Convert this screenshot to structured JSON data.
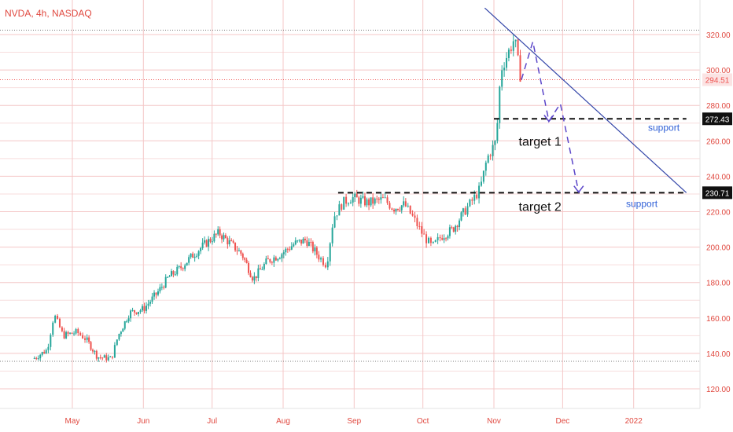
{
  "header": {
    "title": "NVDA, 4h, NASDAQ"
  },
  "colors": {
    "up": "#26a69a",
    "down": "#ef5350",
    "grid": "#f4c7c7",
    "axis_text": "#e0483f",
    "trendline": "#3345a8",
    "projection": "#5b46c9",
    "support_text": "#2f5fd6"
  },
  "chart_data": {
    "type": "candlestick",
    "y_axis": {
      "ticks": [
        "320.00",
        "300.00",
        "280.00",
        "260.00",
        "240.00",
        "220.00",
        "200.00",
        "180.00",
        "160.00",
        "140.00",
        "120.00"
      ],
      "range": [
        110,
        330
      ]
    },
    "x_axis": {
      "ticks": [
        "May",
        "Jun",
        "Jul",
        "Aug",
        "Sep",
        "Oct",
        "Nov",
        "Dec",
        "2022"
      ]
    },
    "price_labels": [
      {
        "value": 294.51,
        "label": "294.51",
        "style": "current"
      },
      {
        "value": 272.43,
        "label": "272.43",
        "style": "level"
      },
      {
        "value": 230.71,
        "label": "230.71",
        "style": "level"
      }
    ],
    "series_path": [
      [
        "2021-04-14",
        137
      ],
      [
        "2021-04-20",
        142
      ],
      [
        "2021-04-23",
        162
      ],
      [
        "2021-04-27",
        150
      ],
      [
        "2021-05-03",
        152
      ],
      [
        "2021-05-07",
        148
      ],
      [
        "2021-05-12",
        138
      ],
      [
        "2021-05-18",
        137
      ],
      [
        "2021-05-21",
        150
      ],
      [
        "2021-05-26",
        163
      ],
      [
        "2021-06-01",
        165
      ],
      [
        "2021-06-07",
        174
      ],
      [
        "2021-06-12",
        183
      ],
      [
        "2021-06-17",
        188
      ],
      [
        "2021-06-23",
        196
      ],
      [
        "2021-06-29",
        203
      ],
      [
        "2021-07-04",
        208
      ],
      [
        "2021-07-09",
        202
      ],
      [
        "2021-07-14",
        196
      ],
      [
        "2021-07-19",
        182
      ],
      [
        "2021-07-25",
        192
      ],
      [
        "2021-07-31",
        196
      ],
      [
        "2021-08-06",
        202
      ],
      [
        "2021-08-11",
        204
      ],
      [
        "2021-08-17",
        194
      ],
      [
        "2021-08-20",
        190
      ],
      [
        "2021-08-23",
        217
      ],
      [
        "2021-08-27",
        225
      ],
      [
        "2021-08-31",
        228
      ],
      [
        "2021-09-07",
        225
      ],
      [
        "2021-09-14",
        227
      ],
      [
        "2021-09-18",
        222
      ],
      [
        "2021-09-23",
        224
      ],
      [
        "2021-09-27",
        216
      ],
      [
        "2021-10-01",
        207
      ],
      [
        "2021-10-05",
        200
      ],
      [
        "2021-10-09",
        206
      ],
      [
        "2021-10-14",
        210
      ],
      [
        "2021-10-19",
        220
      ],
      [
        "2021-10-23",
        227
      ],
      [
        "2021-10-26",
        233
      ],
      [
        "2021-10-29",
        250
      ],
      [
        "2021-11-02",
        260
      ],
      [
        "2021-11-04",
        300
      ],
      [
        "2021-11-08",
        312
      ],
      [
        "2021-11-10",
        318
      ],
      [
        "2021-11-12",
        300
      ],
      [
        "2021-11-13",
        294.51
      ]
    ],
    "annotations": {
      "trendline": {
        "from": [
          "2021-10-28",
          335
        ],
        "to": [
          "2022-01-24",
          230.71
        ]
      },
      "support_levels": [
        {
          "value": 272.43,
          "from": "2021-11-01",
          "to": "2022-01-24",
          "label": "support"
        },
        {
          "value": 230.71,
          "from": "2021-08-25",
          "to": "2022-01-24",
          "label": "support"
        }
      ],
      "targets": [
        {
          "label": "target 1",
          "x": "2021-11-18",
          "y": 260
        },
        {
          "label": "target 2",
          "x": "2021-11-18",
          "y": 223
        }
      ],
      "projection_path": [
        [
          "2021-11-13",
          294.51
        ],
        [
          "2021-11-18",
          316
        ],
        [
          "2021-11-25",
          271
        ],
        [
          "2021-11-30",
          281
        ],
        [
          "2021-12-08",
          231
        ]
      ],
      "projection_arrowheads": [
        [
          "2021-11-25",
          271
        ],
        [
          "2021-12-08",
          231
        ]
      ]
    }
  }
}
